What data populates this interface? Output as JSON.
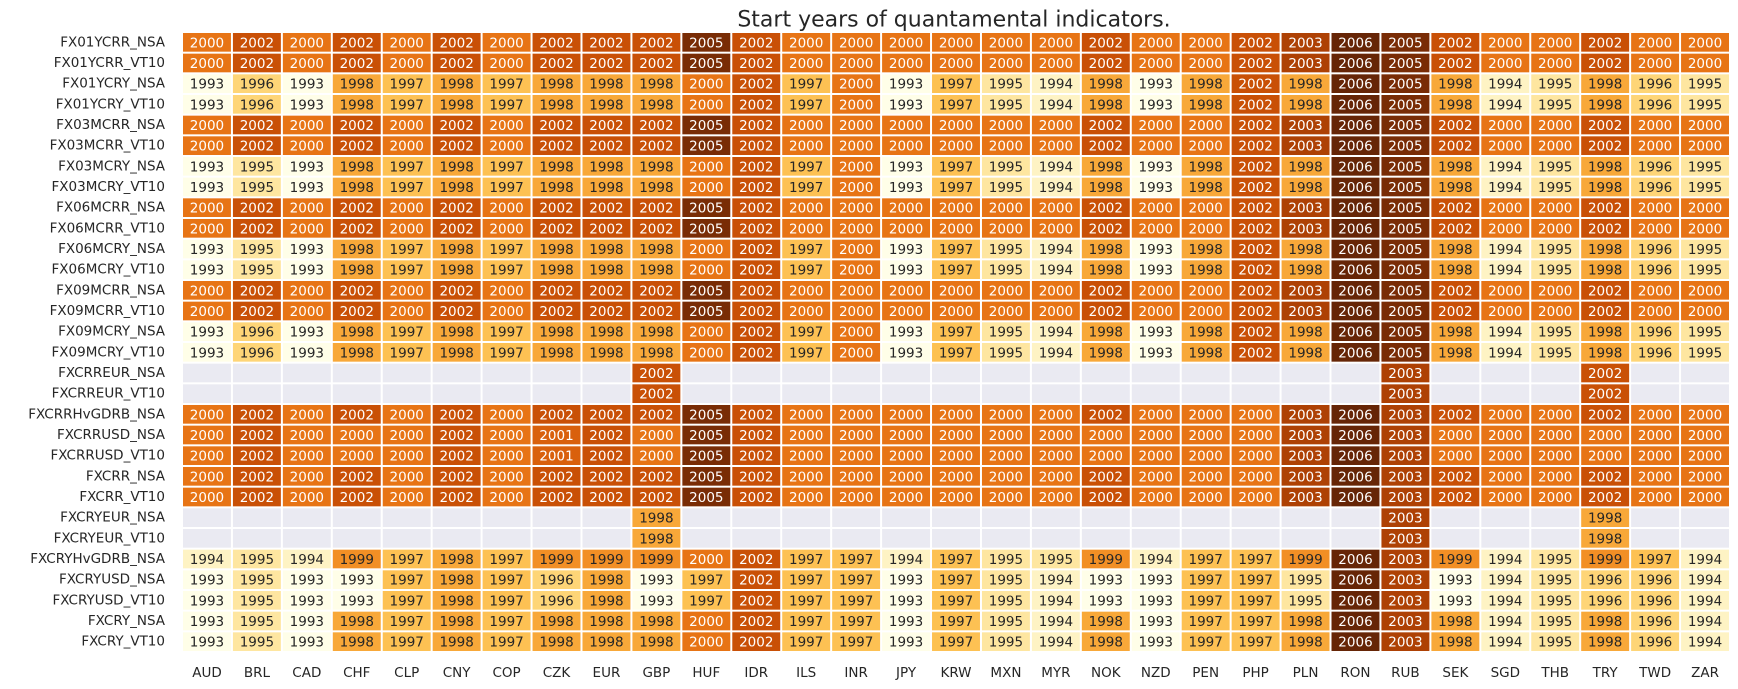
{
  "chart_data": {
    "type": "heatmap",
    "title": "Start years of quantamental indicators.",
    "xlabel": "",
    "ylabel": "",
    "columns": [
      "AUD",
      "BRL",
      "CAD",
      "CHF",
      "CLP",
      "CNY",
      "COP",
      "CZK",
      "EUR",
      "GBP",
      "HUF",
      "IDR",
      "ILS",
      "INR",
      "JPY",
      "KRW",
      "MXN",
      "MYR",
      "NOK",
      "NZD",
      "PEN",
      "PHP",
      "PLN",
      "RON",
      "RUB",
      "SEK",
      "SGD",
      "THB",
      "TRY",
      "TWD",
      "ZAR"
    ],
    "rows": [
      {
        "label": "FX01YCRR_NSA",
        "values": [
          2000,
          2002,
          2000,
          2002,
          2000,
          2002,
          2000,
          2002,
          2002,
          2002,
          2005,
          2002,
          2000,
          2000,
          2000,
          2000,
          2000,
          2000,
          2002,
          2000,
          2000,
          2002,
          2003,
          2006,
          2005,
          2002,
          2000,
          2000,
          2002,
          2000,
          2000
        ]
      },
      {
        "label": "FX01YCRR_VT10",
        "values": [
          2000,
          2002,
          2000,
          2002,
          2000,
          2002,
          2000,
          2002,
          2002,
          2002,
          2005,
          2002,
          2000,
          2000,
          2000,
          2000,
          2000,
          2000,
          2002,
          2000,
          2000,
          2002,
          2003,
          2006,
          2005,
          2002,
          2000,
          2000,
          2002,
          2000,
          2000
        ]
      },
      {
        "label": "FX01YCRY_NSA",
        "values": [
          1993,
          1996,
          1993,
          1998,
          1997,
          1998,
          1997,
          1998,
          1998,
          1998,
          2000,
          2002,
          1997,
          2000,
          1993,
          1997,
          1995,
          1994,
          1998,
          1993,
          1998,
          2002,
          1998,
          2006,
          2005,
          1998,
          1994,
          1995,
          1998,
          1996,
          1995
        ]
      },
      {
        "label": "FX01YCRY_VT10",
        "values": [
          1993,
          1996,
          1993,
          1998,
          1997,
          1998,
          1997,
          1998,
          1998,
          1998,
          2000,
          2002,
          1997,
          2000,
          1993,
          1997,
          1995,
          1994,
          1998,
          1993,
          1998,
          2002,
          1998,
          2006,
          2005,
          1998,
          1994,
          1995,
          1998,
          1996,
          1995
        ]
      },
      {
        "label": "FX03MCRR_NSA",
        "values": [
          2000,
          2002,
          2000,
          2002,
          2000,
          2002,
          2000,
          2002,
          2002,
          2002,
          2005,
          2002,
          2000,
          2000,
          2000,
          2000,
          2000,
          2000,
          2002,
          2000,
          2000,
          2002,
          2003,
          2006,
          2005,
          2002,
          2000,
          2000,
          2002,
          2000,
          2000
        ]
      },
      {
        "label": "FX03MCRR_VT10",
        "values": [
          2000,
          2002,
          2000,
          2002,
          2000,
          2002,
          2000,
          2002,
          2002,
          2002,
          2005,
          2002,
          2000,
          2000,
          2000,
          2000,
          2000,
          2000,
          2002,
          2000,
          2000,
          2002,
          2003,
          2006,
          2005,
          2002,
          2000,
          2000,
          2002,
          2000,
          2000
        ]
      },
      {
        "label": "FX03MCRY_NSA",
        "values": [
          1993,
          1995,
          1993,
          1998,
          1997,
          1998,
          1997,
          1998,
          1998,
          1998,
          2000,
          2002,
          1997,
          2000,
          1993,
          1997,
          1995,
          1994,
          1998,
          1993,
          1998,
          2002,
          1998,
          2006,
          2005,
          1998,
          1994,
          1995,
          1998,
          1996,
          1995
        ]
      },
      {
        "label": "FX03MCRY_VT10",
        "values": [
          1993,
          1995,
          1993,
          1998,
          1997,
          1998,
          1997,
          1998,
          1998,
          1998,
          2000,
          2002,
          1997,
          2000,
          1993,
          1997,
          1995,
          1994,
          1998,
          1993,
          1998,
          2002,
          1998,
          2006,
          2005,
          1998,
          1994,
          1995,
          1998,
          1996,
          1995
        ]
      },
      {
        "label": "FX06MCRR_NSA",
        "values": [
          2000,
          2002,
          2000,
          2002,
          2000,
          2002,
          2000,
          2002,
          2002,
          2002,
          2005,
          2002,
          2000,
          2000,
          2000,
          2000,
          2000,
          2000,
          2002,
          2000,
          2000,
          2002,
          2003,
          2006,
          2005,
          2002,
          2000,
          2000,
          2002,
          2000,
          2000
        ]
      },
      {
        "label": "FX06MCRR_VT10",
        "values": [
          2000,
          2002,
          2000,
          2002,
          2000,
          2002,
          2000,
          2002,
          2002,
          2002,
          2005,
          2002,
          2000,
          2000,
          2000,
          2000,
          2000,
          2000,
          2002,
          2000,
          2000,
          2002,
          2003,
          2006,
          2005,
          2002,
          2000,
          2000,
          2002,
          2000,
          2000
        ]
      },
      {
        "label": "FX06MCRY_NSA",
        "values": [
          1993,
          1995,
          1993,
          1998,
          1997,
          1998,
          1997,
          1998,
          1998,
          1998,
          2000,
          2002,
          1997,
          2000,
          1993,
          1997,
          1995,
          1994,
          1998,
          1993,
          1998,
          2002,
          1998,
          2006,
          2005,
          1998,
          1994,
          1995,
          1998,
          1996,
          1995
        ]
      },
      {
        "label": "FX06MCRY_VT10",
        "values": [
          1993,
          1995,
          1993,
          1998,
          1997,
          1998,
          1997,
          1998,
          1998,
          1998,
          2000,
          2002,
          1997,
          2000,
          1993,
          1997,
          1995,
          1994,
          1998,
          1993,
          1998,
          2002,
          1998,
          2006,
          2005,
          1998,
          1994,
          1995,
          1998,
          1996,
          1995
        ]
      },
      {
        "label": "FX09MCRR_NSA",
        "values": [
          2000,
          2002,
          2000,
          2002,
          2000,
          2002,
          2000,
          2002,
          2002,
          2002,
          2005,
          2002,
          2000,
          2000,
          2000,
          2000,
          2000,
          2000,
          2002,
          2000,
          2000,
          2002,
          2003,
          2006,
          2005,
          2002,
          2000,
          2000,
          2002,
          2000,
          2000
        ]
      },
      {
        "label": "FX09MCRR_VT10",
        "values": [
          2000,
          2002,
          2000,
          2002,
          2000,
          2002,
          2000,
          2002,
          2002,
          2002,
          2005,
          2002,
          2000,
          2000,
          2000,
          2000,
          2000,
          2000,
          2002,
          2000,
          2000,
          2002,
          2003,
          2006,
          2005,
          2002,
          2000,
          2000,
          2002,
          2000,
          2000
        ]
      },
      {
        "label": "FX09MCRY_NSA",
        "values": [
          1993,
          1996,
          1993,
          1998,
          1997,
          1998,
          1997,
          1998,
          1998,
          1998,
          2000,
          2002,
          1997,
          2000,
          1993,
          1997,
          1995,
          1994,
          1998,
          1993,
          1998,
          2002,
          1998,
          2006,
          2005,
          1998,
          1994,
          1995,
          1998,
          1996,
          1995
        ]
      },
      {
        "label": "FX09MCRY_VT10",
        "values": [
          1993,
          1996,
          1993,
          1998,
          1997,
          1998,
          1997,
          1998,
          1998,
          1998,
          2000,
          2002,
          1997,
          2000,
          1993,
          1997,
          1995,
          1994,
          1998,
          1993,
          1998,
          2002,
          1998,
          2006,
          2005,
          1998,
          1994,
          1995,
          1998,
          1996,
          1995
        ]
      },
      {
        "label": "FXCRREUR_NSA",
        "values": [
          null,
          null,
          null,
          null,
          null,
          null,
          null,
          null,
          null,
          2002,
          null,
          null,
          null,
          null,
          null,
          null,
          null,
          null,
          null,
          null,
          null,
          null,
          null,
          null,
          2003,
          null,
          null,
          null,
          2002,
          null,
          null
        ]
      },
      {
        "label": "FXCRREUR_VT10",
        "values": [
          null,
          null,
          null,
          null,
          null,
          null,
          null,
          null,
          null,
          2002,
          null,
          null,
          null,
          null,
          null,
          null,
          null,
          null,
          null,
          null,
          null,
          null,
          null,
          null,
          2003,
          null,
          null,
          null,
          2002,
          null,
          null
        ]
      },
      {
        "label": "FXCRRHvGDRB_NSA",
        "values": [
          2000,
          2002,
          2000,
          2002,
          2000,
          2002,
          2000,
          2002,
          2002,
          2002,
          2005,
          2002,
          2000,
          2000,
          2000,
          2000,
          2000,
          2000,
          2002,
          2000,
          2000,
          2000,
          2003,
          2006,
          2003,
          2002,
          2000,
          2000,
          2002,
          2000,
          2000
        ]
      },
      {
        "label": "FXCRRUSD_NSA",
        "values": [
          2000,
          2002,
          2000,
          2000,
          2000,
          2002,
          2000,
          2001,
          2002,
          2000,
          2005,
          2002,
          2000,
          2000,
          2000,
          2000,
          2000,
          2000,
          2000,
          2000,
          2000,
          2000,
          2003,
          2006,
          2003,
          2000,
          2000,
          2000,
          2000,
          2000,
          2000
        ]
      },
      {
        "label": "FXCRRUSD_VT10",
        "values": [
          2000,
          2002,
          2000,
          2000,
          2000,
          2002,
          2000,
          2001,
          2002,
          2000,
          2005,
          2002,
          2000,
          2000,
          2000,
          2000,
          2000,
          2000,
          2000,
          2000,
          2000,
          2000,
          2003,
          2006,
          2003,
          2000,
          2000,
          2000,
          2000,
          2000,
          2000
        ]
      },
      {
        "label": "FXCRR_NSA",
        "values": [
          2000,
          2002,
          2000,
          2002,
          2000,
          2002,
          2000,
          2002,
          2002,
          2002,
          2005,
          2002,
          2000,
          2000,
          2000,
          2000,
          2000,
          2000,
          2002,
          2000,
          2000,
          2000,
          2003,
          2006,
          2003,
          2002,
          2000,
          2000,
          2002,
          2000,
          2000
        ]
      },
      {
        "label": "FXCRR_VT10",
        "values": [
          2000,
          2002,
          2000,
          2002,
          2000,
          2002,
          2000,
          2002,
          2002,
          2002,
          2005,
          2002,
          2000,
          2000,
          2000,
          2000,
          2000,
          2000,
          2002,
          2000,
          2000,
          2000,
          2003,
          2006,
          2003,
          2002,
          2000,
          2000,
          2002,
          2000,
          2000
        ]
      },
      {
        "label": "FXCRYEUR_NSA",
        "values": [
          null,
          null,
          null,
          null,
          null,
          null,
          null,
          null,
          null,
          1998,
          null,
          null,
          null,
          null,
          null,
          null,
          null,
          null,
          null,
          null,
          null,
          null,
          null,
          null,
          2003,
          null,
          null,
          null,
          1998,
          null,
          null
        ]
      },
      {
        "label": "FXCRYEUR_VT10",
        "values": [
          null,
          null,
          null,
          null,
          null,
          null,
          null,
          null,
          null,
          1998,
          null,
          null,
          null,
          null,
          null,
          null,
          null,
          null,
          null,
          null,
          null,
          null,
          null,
          null,
          2003,
          null,
          null,
          null,
          1998,
          null,
          null
        ]
      },
      {
        "label": "FXCRYHvGDRB_NSA",
        "values": [
          1994,
          1995,
          1994,
          1999,
          1997,
          1998,
          1997,
          1999,
          1999,
          1999,
          2000,
          2002,
          1997,
          1997,
          1994,
          1997,
          1995,
          1995,
          1999,
          1994,
          1997,
          1997,
          1999,
          2006,
          2003,
          1999,
          1994,
          1995,
          1999,
          1997,
          1994
        ]
      },
      {
        "label": "FXCRYUSD_NSA",
        "values": [
          1993,
          1995,
          1993,
          1993,
          1997,
          1998,
          1997,
          1996,
          1998,
          1993,
          1997,
          2002,
          1997,
          1997,
          1993,
          1997,
          1995,
          1994,
          1993,
          1993,
          1997,
          1997,
          1995,
          2006,
          2003,
          1993,
          1994,
          1995,
          1996,
          1996,
          1994
        ]
      },
      {
        "label": "FXCRYUSD_VT10",
        "values": [
          1993,
          1995,
          1993,
          1993,
          1997,
          1998,
          1997,
          1996,
          1998,
          1993,
          1997,
          2002,
          1997,
          1997,
          1993,
          1997,
          1995,
          1994,
          1993,
          1993,
          1997,
          1997,
          1995,
          2006,
          2003,
          1993,
          1994,
          1995,
          1996,
          1996,
          1994
        ]
      },
      {
        "label": "FXCRY_NSA",
        "values": [
          1993,
          1995,
          1993,
          1998,
          1997,
          1998,
          1997,
          1998,
          1998,
          1998,
          2000,
          2002,
          1997,
          1997,
          1993,
          1997,
          1995,
          1994,
          1998,
          1993,
          1997,
          1997,
          1998,
          2006,
          2003,
          1998,
          1994,
          1995,
          1998,
          1996,
          1994
        ]
      },
      {
        "label": "FXCRY_VT10",
        "values": [
          1993,
          1995,
          1993,
          1998,
          1997,
          1998,
          1997,
          1998,
          1998,
          1998,
          2000,
          2002,
          1997,
          1997,
          1993,
          1997,
          1995,
          1994,
          1998,
          1993,
          1997,
          1997,
          1998,
          2006,
          2003,
          1998,
          1994,
          1995,
          1998,
          1996,
          1994
        ]
      }
    ],
    "color_scale": {
      "min_value": 1993,
      "max_value": 2006,
      "stops": [
        "#fffee8",
        "#fee9a6",
        "#fec85a",
        "#f69a2b",
        "#e3690f",
        "#c44b04",
        "#8a3205",
        "#662506"
      ],
      "missing_color": "#eaeaf2",
      "dark_text_threshold": 1999.5,
      "text_light": "#ffffff",
      "text_dark": "#262626"
    }
  }
}
